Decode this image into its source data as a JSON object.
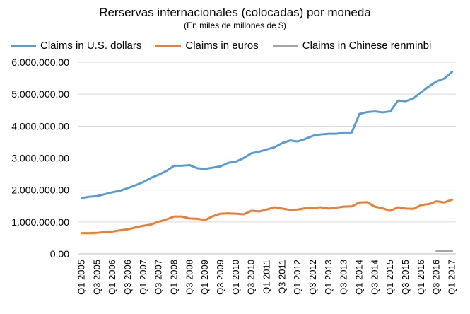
{
  "chart_data": {
    "type": "line",
    "title": "Rerservas internacionales (colocadas) por moneda",
    "subtitle": "(En miles de millones de $)",
    "xlabel": "",
    "ylabel": "",
    "ylim": [
      0,
      6000000
    ],
    "yticks": [
      "0,00",
      "1.000.000,00",
      "2.000.000,00",
      "3.000.000,00",
      "4.000.000,00",
      "5.000.000,00",
      "6.000.000,00"
    ],
    "xtick_labels": [
      "Q1 2005",
      "Q3 2005",
      "Q1 2006",
      "Q3 2006",
      "Q1 2007",
      "Q3 2007",
      "Q1 2008",
      "Q3 2008",
      "Q1 2009",
      "Q3 2009",
      "Q1 2010",
      "Q3 2010",
      "Q1 2011",
      "Q3 2011",
      "Q1 2012",
      "Q3 2012",
      "Q1 2013",
      "Q3 2013",
      "Q1 2014",
      "Q3 2014",
      "Q1 2015",
      "Q3 2015",
      "Q1 2016",
      "Q3 2016",
      "Q1 2017"
    ],
    "grid": true,
    "legend_position": "top",
    "x": [
      "Q1 2005",
      "Q2 2005",
      "Q3 2005",
      "Q4 2005",
      "Q1 2006",
      "Q2 2006",
      "Q3 2006",
      "Q4 2006",
      "Q1 2007",
      "Q2 2007",
      "Q3 2007",
      "Q4 2007",
      "Q1 2008",
      "Q2 2008",
      "Q3 2008",
      "Q4 2008",
      "Q1 2009",
      "Q2 2009",
      "Q3 2009",
      "Q4 2009",
      "Q1 2010",
      "Q2 2010",
      "Q3 2010",
      "Q4 2010",
      "Q1 2011",
      "Q2 2011",
      "Q3 2011",
      "Q4 2011",
      "Q1 2012",
      "Q2 2012",
      "Q3 2012",
      "Q4 2012",
      "Q1 2013",
      "Q2 2013",
      "Q3 2013",
      "Q4 2013",
      "Q1 2014",
      "Q2 2014",
      "Q3 2014",
      "Q4 2014",
      "Q1 2015",
      "Q2 2015",
      "Q3 2015",
      "Q4 2015",
      "Q1 2016",
      "Q2 2016",
      "Q3 2016",
      "Q4 2016",
      "Q1 2017"
    ],
    "series": [
      {
        "name": "Claims in U.S. dollars",
        "color": "#5b9bd5",
        "values": [
          1750000,
          1790000,
          1810000,
          1870000,
          1930000,
          1980000,
          2060000,
          2150000,
          2250000,
          2380000,
          2480000,
          2600000,
          2760000,
          2760000,
          2780000,
          2680000,
          2660000,
          2700000,
          2740000,
          2850000,
          2890000,
          3000000,
          3150000,
          3200000,
          3270000,
          3340000,
          3470000,
          3550000,
          3520000,
          3600000,
          3700000,
          3740000,
          3760000,
          3760000,
          3800000,
          3800000,
          4380000,
          4440000,
          4460000,
          4430000,
          4460000,
          4800000,
          4780000,
          4870000,
          5060000,
          5240000,
          5400000,
          5490000,
          5700000
        ]
      },
      {
        "name": "Claims in euros",
        "color": "#ed7d31",
        "values": [
          650000,
          650000,
          660000,
          680000,
          700000,
          740000,
          770000,
          830000,
          880000,
          920000,
          1010000,
          1080000,
          1170000,
          1170000,
          1110000,
          1100000,
          1060000,
          1180000,
          1260000,
          1270000,
          1260000,
          1240000,
          1350000,
          1330000,
          1390000,
          1460000,
          1420000,
          1380000,
          1390000,
          1430000,
          1440000,
          1460000,
          1420000,
          1450000,
          1480000,
          1490000,
          1610000,
          1620000,
          1480000,
          1430000,
          1350000,
          1460000,
          1420000,
          1410000,
          1530000,
          1560000,
          1650000,
          1610000,
          1700000
        ]
      },
      {
        "name": "Claims in Chinese renminbi",
        "color": "#a5a5a5",
        "values": [
          null,
          null,
          null,
          null,
          null,
          null,
          null,
          null,
          null,
          null,
          null,
          null,
          null,
          null,
          null,
          null,
          null,
          null,
          null,
          null,
          null,
          null,
          null,
          null,
          null,
          null,
          null,
          null,
          null,
          null,
          null,
          null,
          null,
          null,
          null,
          null,
          null,
          null,
          null,
          null,
          null,
          null,
          null,
          null,
          null,
          null,
          90000,
          90000,
          90000
        ]
      }
    ]
  }
}
